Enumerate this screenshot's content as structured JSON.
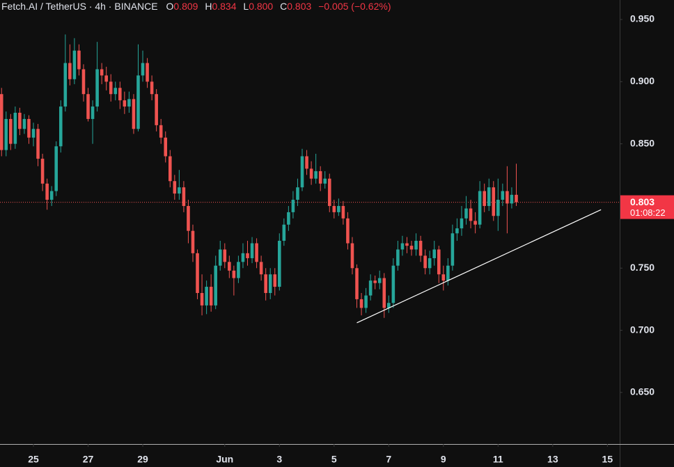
{
  "header": {
    "title": "Fetch.AI / TetherUS · 4h · BINANCE",
    "ohlc": [
      {
        "label": "O",
        "value": "0.809"
      },
      {
        "label": "H",
        "value": "0.834"
      },
      {
        "label": "L",
        "value": "0.800"
      },
      {
        "label": "C",
        "value": "0.803"
      }
    ],
    "change": "−0.005 (−0.62%)"
  },
  "chart_data": {
    "type": "candlestick",
    "up_color": "#26a69a",
    "down_color": "#ef5350",
    "open": [
      0.89,
      0.845,
      0.87,
      0.85,
      0.875,
      0.862,
      0.87,
      0.855,
      0.862,
      0.838,
      0.818,
      0.805,
      0.812,
      0.848,
      0.88,
      0.915,
      0.902,
      0.925,
      0.91,
      0.89,
      0.87,
      0.88,
      0.91,
      0.905,
      0.9,
      0.89,
      0.895,
      0.885,
      0.88,
      0.886,
      0.862,
      0.905,
      0.915,
      0.9,
      0.89,
      0.865,
      0.855,
      0.84,
      0.82,
      0.81,
      0.815,
      0.8,
      0.78,
      0.762,
      0.73,
      0.72,
      0.735,
      0.72,
      0.752,
      0.765,
      0.755,
      0.748,
      0.742,
      0.755,
      0.762,
      0.758,
      0.77,
      0.755,
      0.745,
      0.73,
      0.745,
      0.735,
      0.772,
      0.785,
      0.795,
      0.805,
      0.815,
      0.84,
      0.83,
      0.822,
      0.828,
      0.818,
      0.822,
      0.8,
      0.795,
      0.8,
      0.79,
      0.77,
      0.75,
      0.725,
      0.718,
      0.728,
      0.74,
      0.738,
      0.742,
      0.718,
      0.722,
      0.752,
      0.765,
      0.77,
      0.768,
      0.765,
      0.772,
      0.76,
      0.75,
      0.758,
      0.765,
      0.745,
      0.74,
      0.752,
      0.778,
      0.782,
      0.79,
      0.798,
      0.788,
      0.785,
      0.812,
      0.8,
      0.815,
      0.792,
      0.805,
      0.812,
      0.802,
      0.809
    ],
    "high": [
      0.895,
      0.876,
      0.874,
      0.88,
      0.879,
      0.874,
      0.873,
      0.867,
      0.866,
      0.842,
      0.822,
      0.816,
      0.852,
      0.885,
      0.938,
      0.93,
      0.935,
      0.93,
      0.914,
      0.895,
      0.885,
      0.932,
      0.915,
      0.912,
      0.906,
      0.9,
      0.9,
      0.892,
      0.892,
      0.89,
      0.93,
      0.925,
      0.919,
      0.905,
      0.894,
      0.87,
      0.86,
      0.845,
      0.825,
      0.829,
      0.82,
      0.805,
      0.785,
      0.765,
      0.745,
      0.74,
      0.745,
      0.76,
      0.772,
      0.77,
      0.76,
      0.752,
      0.76,
      0.77,
      0.772,
      0.775,
      0.774,
      0.76,
      0.75,
      0.75,
      0.75,
      0.778,
      0.79,
      0.8,
      0.812,
      0.822,
      0.846,
      0.845,
      0.836,
      0.842,
      0.832,
      0.828,
      0.826,
      0.805,
      0.806,
      0.804,
      0.795,
      0.775,
      0.753,
      0.73,
      0.734,
      0.745,
      0.744,
      0.748,
      0.746,
      0.728,
      0.758,
      0.772,
      0.776,
      0.775,
      0.772,
      0.778,
      0.776,
      0.765,
      0.764,
      0.772,
      0.768,
      0.752,
      0.758,
      0.785,
      0.79,
      0.8,
      0.808,
      0.805,
      0.795,
      0.82,
      0.818,
      0.822,
      0.82,
      0.822,
      0.818,
      0.832,
      0.815,
      0.834
    ],
    "low": [
      0.84,
      0.84,
      0.845,
      0.846,
      0.857,
      0.858,
      0.85,
      0.848,
      0.832,
      0.812,
      0.797,
      0.8,
      0.808,
      0.843,
      0.876,
      0.897,
      0.898,
      0.905,
      0.884,
      0.868,
      0.85,
      0.876,
      0.898,
      0.893,
      0.884,
      0.885,
      0.878,
      0.874,
      0.875,
      0.858,
      0.86,
      0.9,
      0.895,
      0.885,
      0.86,
      0.85,
      0.835,
      0.815,
      0.805,
      0.805,
      0.795,
      0.77,
      0.755,
      0.725,
      0.712,
      0.713,
      0.715,
      0.717,
      0.748,
      0.75,
      0.742,
      0.728,
      0.738,
      0.75,
      0.752,
      0.754,
      0.75,
      0.74,
      0.724,
      0.725,
      0.728,
      0.732,
      0.768,
      0.78,
      0.79,
      0.8,
      0.812,
      0.825,
      0.817,
      0.818,
      0.812,
      0.814,
      0.795,
      0.79,
      0.792,
      0.785,
      0.765,
      0.745,
      0.718,
      0.712,
      0.714,
      0.724,
      0.733,
      0.733,
      0.71,
      0.714,
      0.718,
      0.748,
      0.76,
      0.762,
      0.76,
      0.76,
      0.755,
      0.745,
      0.745,
      0.752,
      0.738,
      0.732,
      0.736,
      0.748,
      0.772,
      0.776,
      0.785,
      0.782,
      0.778,
      0.782,
      0.795,
      0.796,
      0.788,
      0.78,
      0.8,
      0.778,
      0.798,
      0.8
    ],
    "close": [
      0.845,
      0.87,
      0.85,
      0.875,
      0.862,
      0.87,
      0.855,
      0.862,
      0.838,
      0.818,
      0.805,
      0.812,
      0.848,
      0.88,
      0.915,
      0.902,
      0.925,
      0.91,
      0.89,
      0.87,
      0.88,
      0.91,
      0.905,
      0.9,
      0.89,
      0.895,
      0.885,
      0.88,
      0.886,
      0.862,
      0.905,
      0.915,
      0.9,
      0.89,
      0.865,
      0.855,
      0.84,
      0.82,
      0.81,
      0.815,
      0.8,
      0.78,
      0.762,
      0.73,
      0.72,
      0.735,
      0.72,
      0.752,
      0.765,
      0.755,
      0.748,
      0.742,
      0.755,
      0.762,
      0.758,
      0.77,
      0.755,
      0.745,
      0.73,
      0.745,
      0.735,
      0.772,
      0.785,
      0.795,
      0.805,
      0.815,
      0.84,
      0.83,
      0.822,
      0.828,
      0.818,
      0.822,
      0.8,
      0.795,
      0.8,
      0.79,
      0.77,
      0.75,
      0.725,
      0.718,
      0.728,
      0.74,
      0.738,
      0.742,
      0.718,
      0.722,
      0.752,
      0.765,
      0.77,
      0.768,
      0.765,
      0.772,
      0.76,
      0.75,
      0.758,
      0.765,
      0.745,
      0.74,
      0.752,
      0.778,
      0.782,
      0.79,
      0.798,
      0.788,
      0.785,
      0.812,
      0.8,
      0.815,
      0.792,
      0.805,
      0.812,
      0.802,
      0.809,
      0.803
    ],
    "xlim": [
      -0.34,
      135.7
    ],
    "xticks": [
      {
        "value": 7,
        "label": "25"
      },
      {
        "value": 19,
        "label": "27"
      },
      {
        "value": 31,
        "label": "29"
      },
      {
        "value": 49,
        "label": "Jun"
      },
      {
        "value": 61,
        "label": "3"
      },
      {
        "value": 73,
        "label": "5"
      },
      {
        "value": 85,
        "label": "7"
      },
      {
        "value": 97,
        "label": "9"
      },
      {
        "value": 109,
        "label": "11"
      },
      {
        "value": 121,
        "label": "13"
      },
      {
        "value": 133,
        "label": "15"
      }
    ],
    "ylim": [
      0.6085,
      0.9657
    ],
    "yticks": [
      {
        "value": 0.65,
        "label": "0.650"
      },
      {
        "value": 0.7,
        "label": "0.700"
      },
      {
        "value": 0.75,
        "label": "0.750"
      },
      {
        "value": 0.85,
        "label": "0.850"
      },
      {
        "value": 0.9,
        "label": "0.900"
      },
      {
        "value": 0.95,
        "label": "0.950"
      }
    ],
    "last_price": {
      "value": 0.803,
      "label": "0.803",
      "countdown": "01:08:22"
    },
    "trendline": {
      "x": [
        78,
        131.6
      ],
      "y": [
        0.706,
        0.797
      ],
      "color": "#ffffff"
    }
  }
}
